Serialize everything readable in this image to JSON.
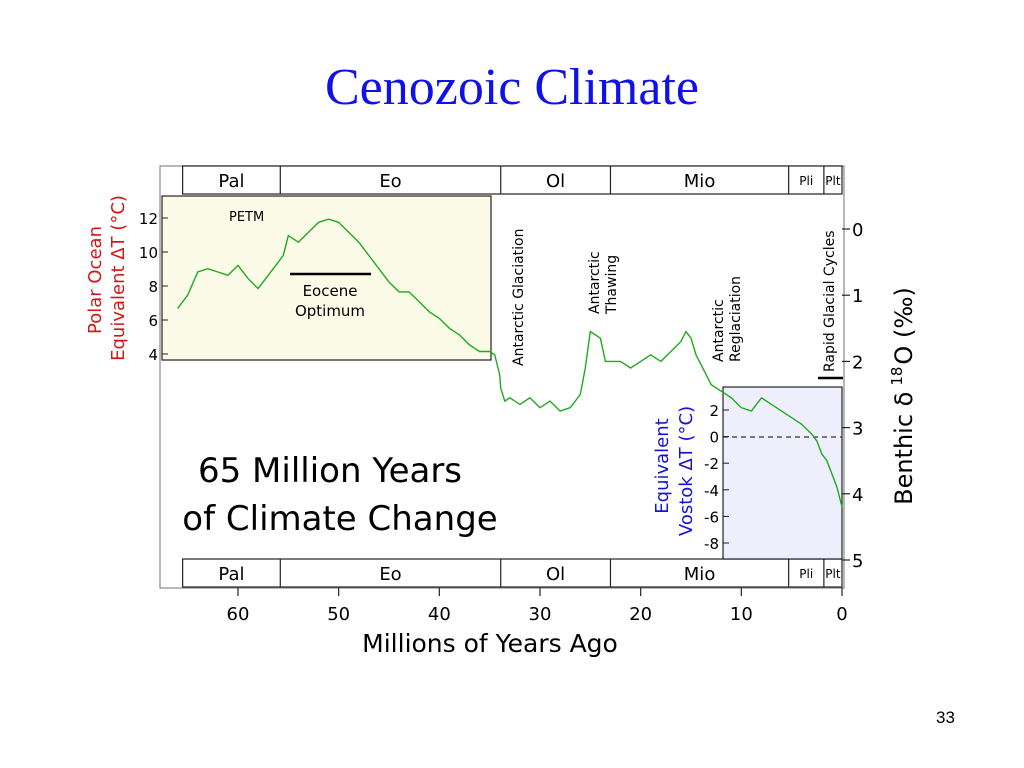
{
  "slide": {
    "title": "Cenozoic Climate",
    "page_number": "33"
  },
  "chart_data": {
    "type": "line",
    "epochs": [
      "Pal",
      "Eo",
      "Ol",
      "Mio",
      "Pli",
      "Plt"
    ],
    "epoch_bounds": [
      65.5,
      55.8,
      33.9,
      23.0,
      5.3,
      1.8,
      0
    ],
    "xlabel": "Millions of Years Ago",
    "xlim": [
      66,
      0
    ],
    "x_ticks": [
      60,
      50,
      40,
      30,
      20,
      10,
      0
    ],
    "right_axis": {
      "label_prefix": "Benthic δ",
      "label_sup": "18",
      "label_suffix": "O (‰)",
      "ylim": [
        5,
        -0.4
      ],
      "ticks": [
        0,
        1,
        2,
        3,
        4,
        5
      ],
      "inverted": true
    },
    "left_inset_axis": {
      "label_line1": "Polar Ocean",
      "label_line2": "Equivalent ΔT (°C)",
      "ticks": [
        12,
        10,
        8,
        6,
        4
      ],
      "x_range": [
        66,
        35
      ],
      "background": "#fbfbe8"
    },
    "right_inset_axis": {
      "label_line1": "Equivalent",
      "label_line2": "Vostok ΔT (°C)",
      "ticks": [
        2,
        0,
        -2,
        -4,
        -6,
        -8
      ],
      "x_range": [
        12,
        0
      ],
      "dashed_zero": true,
      "background": "#eeeefc"
    },
    "series": [
      {
        "color": "#1faa1f",
        "x": [
          66,
          65,
          64,
          63,
          62,
          61,
          60,
          59,
          58,
          57,
          56,
          55.5,
          55,
          54,
          53,
          52,
          51,
          50,
          49,
          48,
          47,
          46,
          45,
          44,
          43,
          42,
          41,
          40,
          39,
          38,
          37,
          36,
          35,
          34.5,
          34,
          33.9,
          33.5,
          33,
          32,
          31,
          30,
          29,
          28,
          27,
          26,
          25.5,
          25,
          24.5,
          24,
          23.5,
          23,
          22,
          21,
          20,
          19,
          18,
          17,
          16,
          15.5,
          15,
          14.5,
          14,
          13.5,
          13,
          12,
          11,
          10,
          9,
          8,
          7,
          6,
          5,
          4,
          3,
          2.5,
          2,
          1.5,
          1,
          0.5,
          0
        ],
        "y": [
          1.2,
          1.0,
          0.65,
          0.6,
          0.65,
          0.7,
          0.55,
          0.75,
          0.9,
          0.7,
          0.5,
          0.4,
          0.1,
          0.2,
          0.05,
          -0.1,
          -0.15,
          -0.1,
          0.05,
          0.2,
          0.4,
          0.6,
          0.8,
          0.95,
          0.95,
          1.1,
          1.25,
          1.35,
          1.5,
          1.6,
          1.75,
          1.85,
          1.85,
          1.9,
          2.2,
          2.4,
          2.6,
          2.55,
          2.65,
          2.55,
          2.7,
          2.6,
          2.75,
          2.7,
          2.5,
          2.1,
          1.55,
          1.6,
          1.65,
          2.0,
          2.0,
          2.0,
          2.1,
          2.0,
          1.9,
          2.0,
          1.85,
          1.7,
          1.55,
          1.65,
          1.9,
          2.05,
          2.2,
          2.35,
          2.45,
          2.55,
          2.7,
          2.75,
          2.55,
          2.65,
          2.75,
          2.85,
          2.95,
          3.1,
          3.2,
          3.4,
          3.5,
          3.7,
          3.9,
          4.2
        ]
      }
    ],
    "annotations": {
      "petm": "PETM",
      "eocene_line1": "Eocene",
      "eocene_line2": "Optimum",
      "antarctic_glaciation": "Antarctic Glaciation",
      "antarctic_thawing_line1": "Antarctic",
      "antarctic_thawing_line2": "Thawing",
      "antarctic_reglaciation_line1": "Antarctic",
      "antarctic_reglaciation_line2": "Reglaciation",
      "rapid_glacial_cycles": "Rapid Glacial Cycles",
      "headline_line1": "65 Million Years",
      "headline_line2": "of Climate Change"
    }
  }
}
